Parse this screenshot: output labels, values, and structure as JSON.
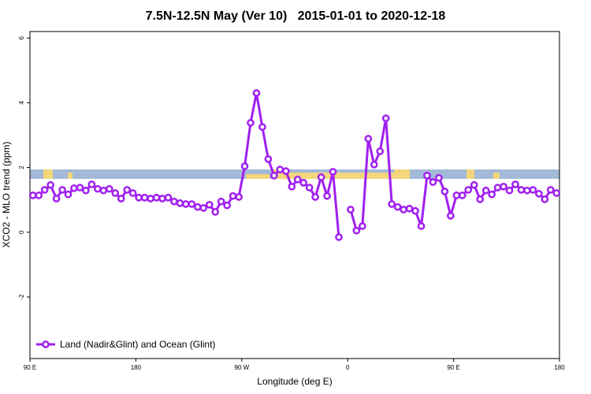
{
  "chart_data": {
    "type": "line",
    "title": "7.5N-12.5N May (Ver 10)   2015-01-01 to 2020-12-18",
    "x_label": "Longitude (deg E)",
    "y_label": "XCO2 - MLO trend (ppm)",
    "xlim": [
      90,
      540
    ],
    "ylim": [
      -3.9,
      6.2
    ],
    "xticks": [
      {
        "value": 90,
        "label": "90 E"
      },
      {
        "value": 180,
        "label": "180"
      },
      {
        "value": 270,
        "label": "90 W"
      },
      {
        "value": 360,
        "label": "0"
      },
      {
        "value": 450,
        "label": "90 E"
      },
      {
        "value": 540,
        "label": "180"
      }
    ],
    "yticks": [
      -2,
      0,
      2,
      4,
      6
    ],
    "legend": "bottom-left",
    "x": [
      92.5,
      97.5,
      102.5,
      107.5,
      112.5,
      117.5,
      122.5,
      127.5,
      132.5,
      137.5,
      142.5,
      147.5,
      152.5,
      157.5,
      162.5,
      167.5,
      172.5,
      177.5,
      182.5,
      187.5,
      192.5,
      197.5,
      202.5,
      207.5,
      212.5,
      217.5,
      222.5,
      227.5,
      232.5,
      237.5,
      242.5,
      247.5,
      252.5,
      257.5,
      262.5,
      267.5,
      272.5,
      277.5,
      282.5,
      287.5,
      292.5,
      297.5,
      302.5,
      307.5,
      312.5,
      317.5,
      322.5,
      327.5,
      332.5,
      337.5,
      342.5,
      347.5,
      352.5,
      357.5,
      362.5,
      367.5,
      372.5,
      377.5,
      382.5,
      387.5,
      392.5,
      397.5,
      402.5,
      407.5,
      412.5,
      417.5,
      422.5,
      427.5,
      432.5,
      437.5,
      442.5,
      447.5,
      452.5,
      457.5,
      462.5,
      467.5,
      472.5,
      477.5,
      482.5,
      487.5,
      492.5,
      497.5,
      502.5,
      507.5,
      512.5,
      517.5,
      522.5,
      527.5,
      532.5,
      537.5
    ],
    "series": [
      {
        "name": "Land (Nadir&Glint) and Ocean (Glint)",
        "color": "#a020f0",
        "values": [
          1.14,
          1.14,
          1.31,
          1.46,
          1.04,
          1.31,
          1.17,
          1.36,
          1.38,
          1.29,
          1.48,
          1.34,
          1.29,
          1.34,
          1.21,
          1.04,
          1.31,
          1.21,
          1.07,
          1.07,
          1.04,
          1.07,
          1.04,
          1.07,
          0.95,
          0.9,
          0.87,
          0.87,
          0.78,
          0.75,
          0.85,
          0.63,
          0.95,
          0.83,
          1.12,
          1.09,
          2.04,
          3.38,
          4.3,
          3.25,
          2.26,
          1.75,
          1.94,
          1.89,
          1.41,
          1.63,
          1.53,
          1.38,
          1.09,
          1.7,
          1.12,
          1.87,
          -0.15,
          null,
          0.7,
          0.05,
          0.19,
          2.89,
          2.09,
          2.5,
          3.52,
          0.87,
          0.78,
          0.7,
          0.73,
          0.66,
          0.19,
          1.75,
          1.55,
          1.68,
          1.26,
          0.51,
          1.14,
          1.14,
          1.31,
          1.46,
          1.02,
          1.29,
          1.17,
          1.38,
          1.41,
          1.29,
          1.48,
          1.31,
          1.29,
          1.31,
          1.19,
          1.02,
          1.31,
          1.21
        ]
      }
    ]
  }
}
